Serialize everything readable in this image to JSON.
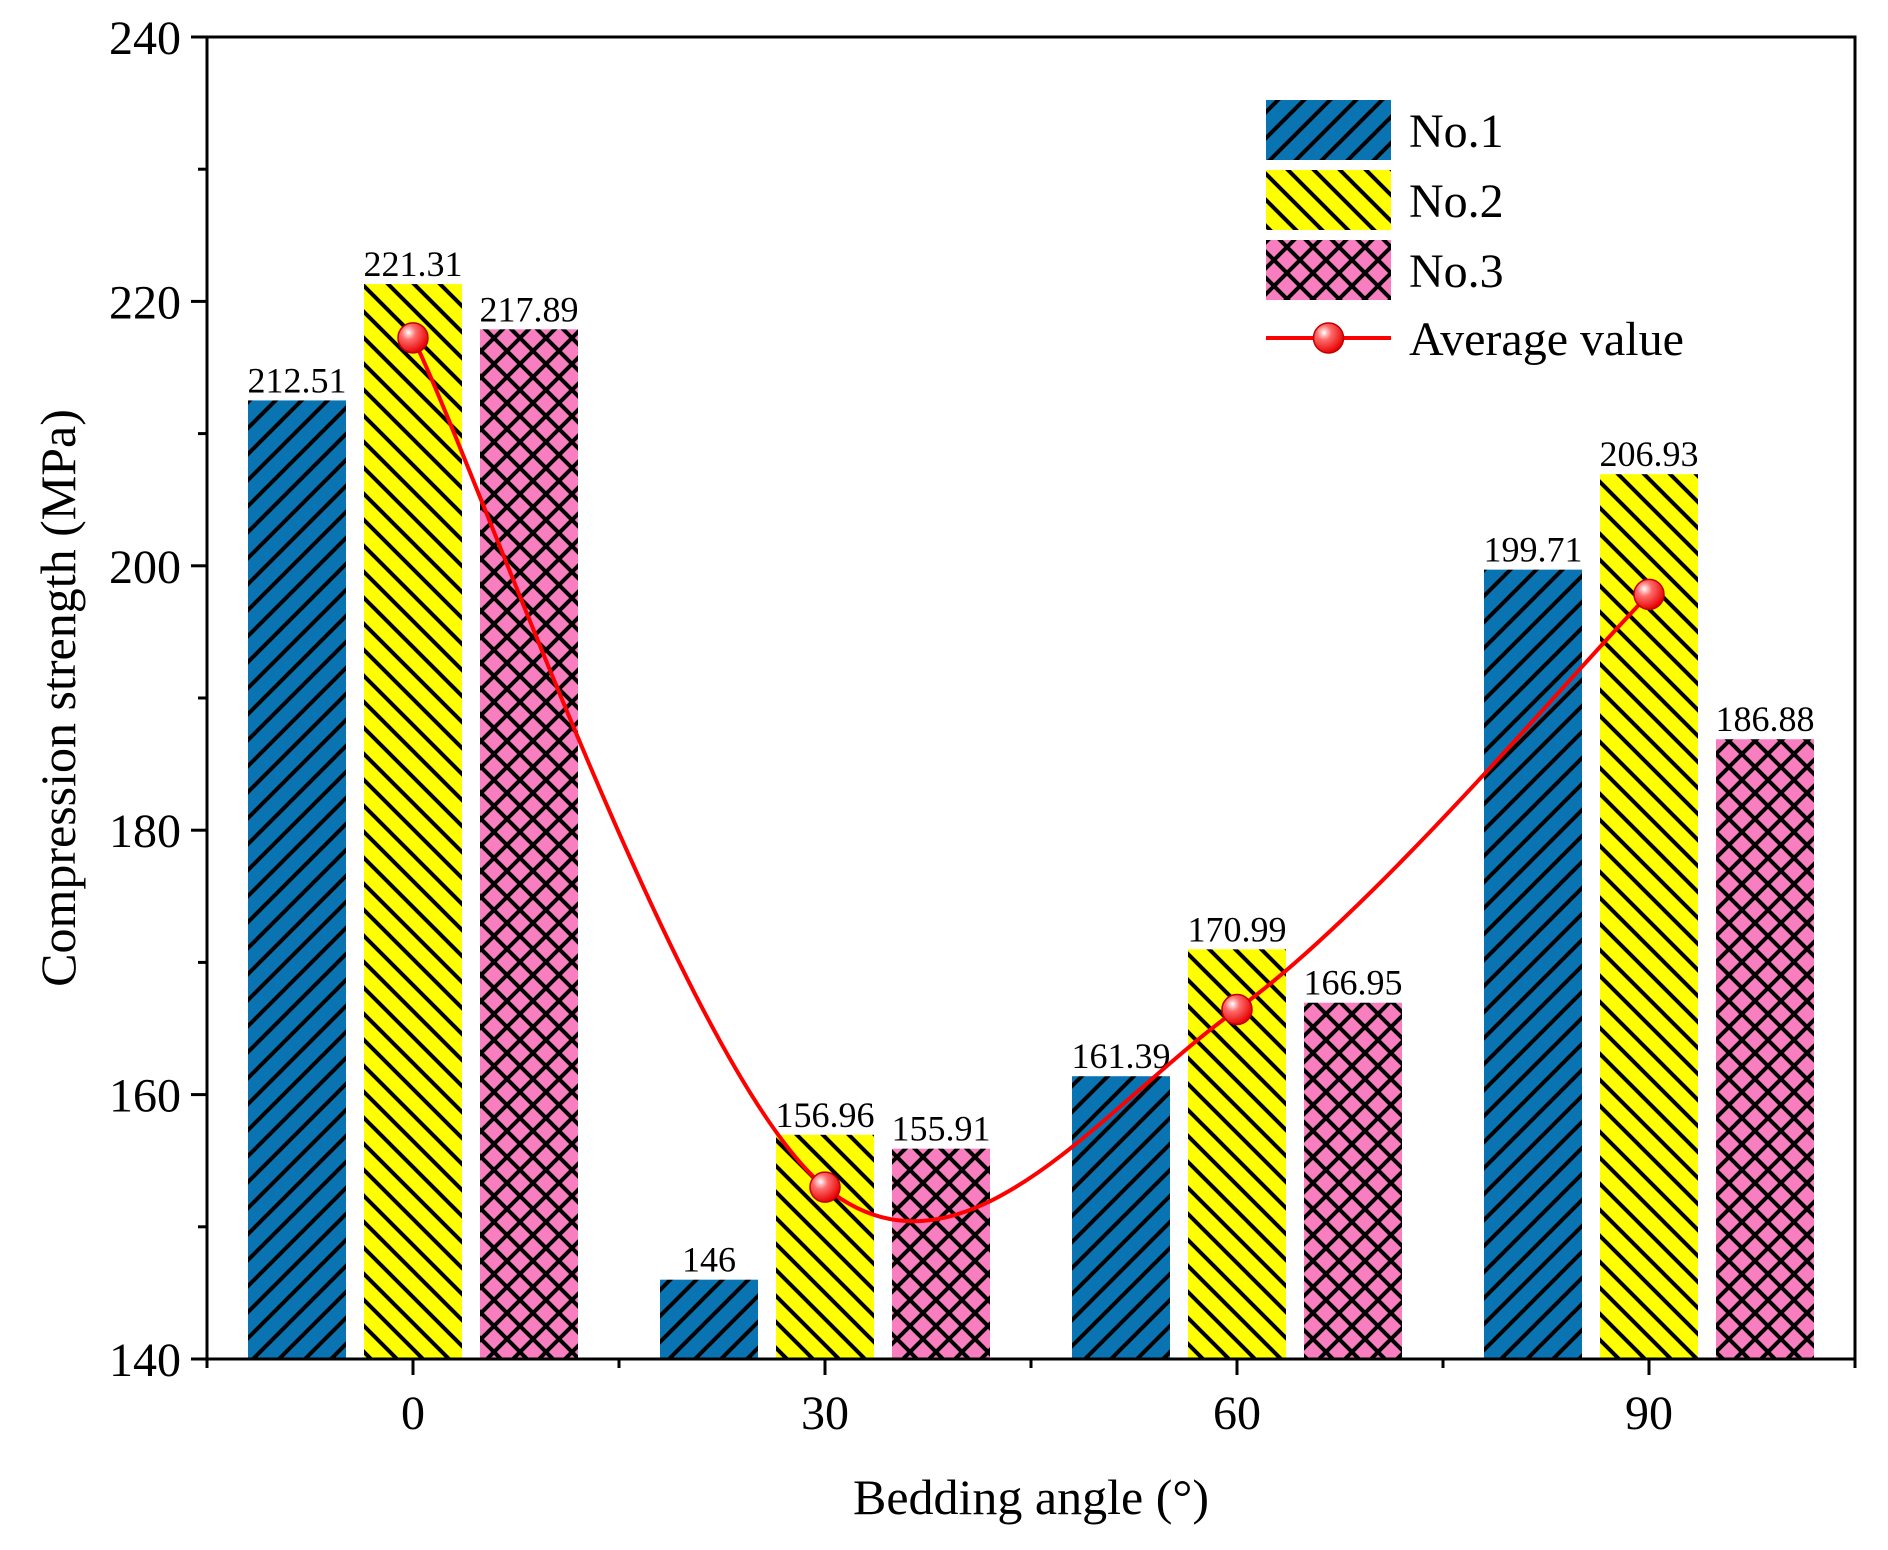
{
  "chart_data": {
    "type": "bar",
    "title": "",
    "xlabel": "Bedding angle (°)",
    "ylabel": "Compression strength (MPa)",
    "categories": [
      "0",
      "30",
      "60",
      "90"
    ],
    "ylim": [
      140,
      240
    ],
    "yticks": [
      140,
      160,
      180,
      200,
      220,
      240
    ],
    "series": [
      {
        "name": "No.1",
        "values": [
          212.51,
          146,
          161.39,
          199.71
        ],
        "labels": [
          "212.51",
          "146",
          "161.39",
          "199.71"
        ],
        "color": "#0a73b2",
        "pattern": "diagonal-up"
      },
      {
        "name": "No.2",
        "values": [
          221.31,
          156.96,
          170.99,
          206.93
        ],
        "labels": [
          "221.31",
          "156.96",
          "170.99",
          "206.93"
        ],
        "color": "#ffff00",
        "pattern": "diagonal-down"
      },
      {
        "name": "No.3",
        "values": [
          217.89,
          155.91,
          166.95,
          186.88
        ],
        "labels": [
          "217.89",
          "155.91",
          "166.95",
          "186.88"
        ],
        "color": "#f97ec0",
        "pattern": "crosshatch"
      }
    ],
    "line": {
      "name": "Average value",
      "values": [
        217.24,
        153.0,
        166.44,
        197.84
      ],
      "color": "#ff0000"
    },
    "legend_position": "top-right",
    "grid": false
  }
}
